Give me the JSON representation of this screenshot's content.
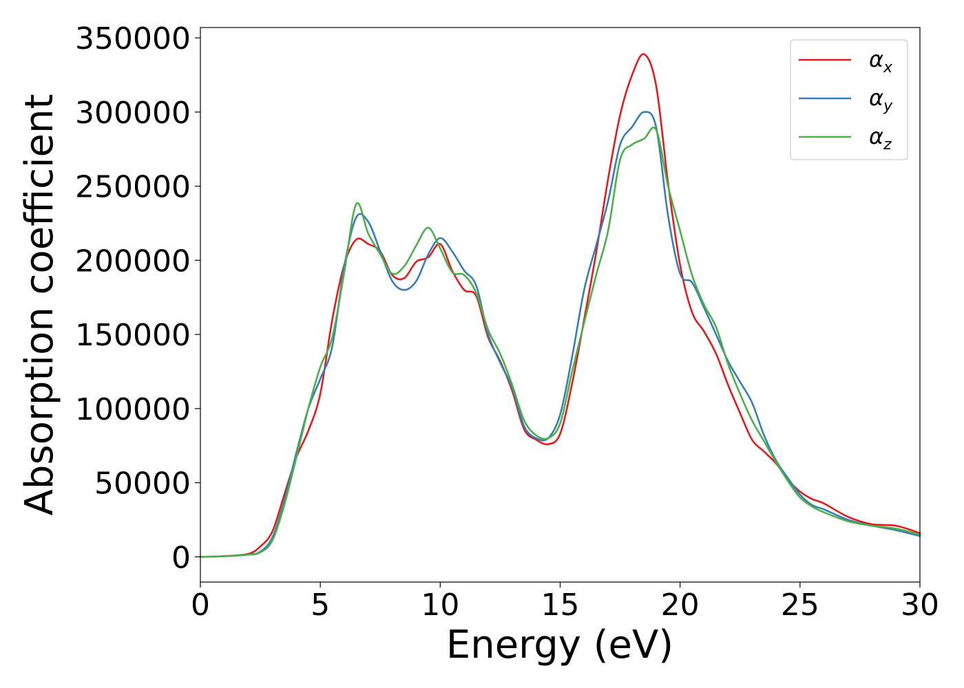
{
  "chart_data": {
    "type": "line",
    "xlabel": "Energy (eV)",
    "ylabel": "Absorption coefficient",
    "xlim": [
      0,
      30
    ],
    "ylim": [
      -17000,
      357000
    ],
    "xticks": [
      0,
      5,
      10,
      15,
      20,
      25,
      30
    ],
    "xtick_labels": [
      "0",
      "5",
      "10",
      "15",
      "20",
      "25",
      "30"
    ],
    "yticks": [
      0,
      50000,
      100000,
      150000,
      200000,
      250000,
      300000,
      350000
    ],
    "ytick_labels": [
      "0",
      "50000",
      "100000",
      "150000",
      "200000",
      "250000",
      "300000",
      "350000"
    ],
    "grid": false,
    "legend_position": "top-right",
    "x": [
      0,
      1,
      2,
      2.5,
      3,
      3.5,
      4,
      4.5,
      5,
      5.5,
      6,
      6.5,
      7,
      7.5,
      8,
      8.5,
      9,
      9.5,
      10,
      10.5,
      11,
      11.5,
      12,
      12.5,
      13,
      13.5,
      14,
      14.5,
      15,
      15.5,
      16,
      16.5,
      17,
      17.5,
      18,
      18.5,
      19,
      19.5,
      20,
      20.5,
      21,
      21.5,
      22,
      22.5,
      23,
      23.5,
      24,
      24.5,
      25,
      25.5,
      26,
      27,
      28,
      29,
      30
    ],
    "series": [
      {
        "name": "α",
        "subscript": "x",
        "color": "#e41a1c",
        "values": [
          0,
          500,
          2000,
          7000,
          17000,
          42000,
          67000,
          85000,
          110000,
          160000,
          197000,
          214000,
          211000,
          206000,
          190000,
          188000,
          199000,
          202000,
          211000,
          193000,
          180000,
          176000,
          148000,
          132000,
          112000,
          86000,
          79000,
          76000,
          83000,
          117000,
          160000,
          205000,
          255000,
          298000,
          325000,
          339000,
          318000,
          252000,
          197000,
          165000,
          152000,
          137000,
          116000,
          97000,
          79000,
          71000,
          63000,
          52000,
          44000,
          39000,
          36000,
          27000,
          22000,
          21000,
          16000
        ]
      },
      {
        "name": "α",
        "subscript": "y",
        "color": "#377eb8",
        "values": [
          0,
          400,
          1500,
          3500,
          13000,
          38000,
          70000,
          100000,
          120000,
          142000,
          196000,
          229000,
          226000,
          206000,
          186000,
          180000,
          186000,
          204000,
          215000,
          206000,
          193000,
          183000,
          150000,
          131000,
          114000,
          88000,
          80000,
          80000,
          96000,
          135000,
          180000,
          210000,
          240000,
          278000,
          290000,
          300000,
          290000,
          230000,
          191000,
          185000,
          168000,
          150000,
          132000,
          118000,
          104000,
          82000,
          65000,
          53000,
          42000,
          35000,
          32000,
          25000,
          21000,
          18000,
          14000
        ]
      },
      {
        "name": "α",
        "subscript": "z",
        "color": "#4daf4a",
        "values": [
          0,
          400,
          1500,
          3000,
          11000,
          35000,
          67000,
          100000,
          128000,
          148000,
          192000,
          238000,
          218000,
          204000,
          191000,
          196000,
          210000,
          222000,
          208000,
          192000,
          190000,
          178000,
          153000,
          137000,
          116000,
          92000,
          82000,
          80000,
          90000,
          125000,
          158000,
          190000,
          220000,
          268000,
          278000,
          282000,
          288000,
          250000,
          220000,
          190000,
          170000,
          155000,
          130000,
          110000,
          92000,
          78000,
          64000,
          51000,
          40000,
          34000,
          30000,
          24000,
          21000,
          19000,
          15000
        ]
      }
    ]
  }
}
